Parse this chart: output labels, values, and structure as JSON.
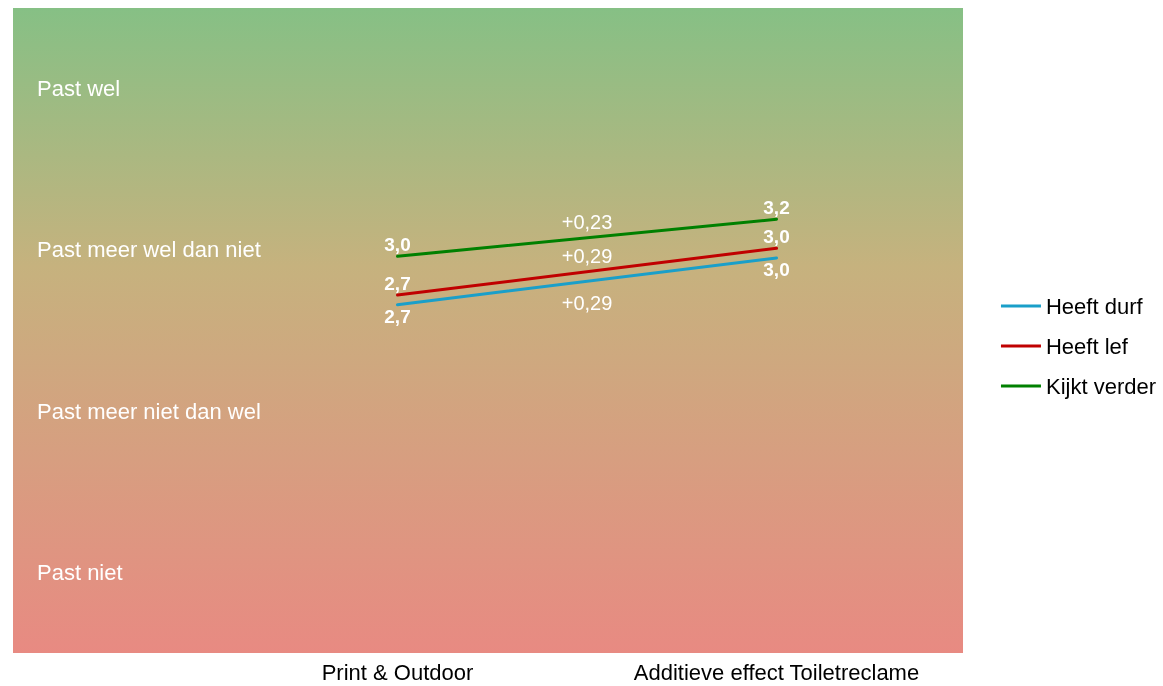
{
  "chart_data": {
    "type": "line",
    "categories": [
      "Print & Outdoor",
      "Additieve effect Toiletreclame"
    ],
    "series": [
      {
        "name": "Heeft durf",
        "color": "#1a9fc9",
        "values": [
          2.66,
          2.95
        ],
        "value_labels": [
          "2,7",
          "3,0"
        ]
      },
      {
        "name": "Heeft lef",
        "color": "#c00000",
        "values": [
          2.72,
          3.01
        ],
        "value_labels": [
          "2,7",
          "3,0"
        ]
      },
      {
        "name": "Kijkt verder",
        "color": "#008000",
        "values": [
          2.96,
          3.19
        ],
        "value_labels": [
          "3,0",
          "3,2"
        ]
      }
    ],
    "ylim": [
      0.5,
      4.5
    ],
    "annotations": [
      "Past wel",
      "Past meer wel dan niet",
      "Past meer niet dan wel",
      "Past niet",
      "+0,23",
      "+0,29",
      "+0,29"
    ],
    "grid": false,
    "legend": "right",
    "marker": "none",
    "line_style": "solid"
  }
}
